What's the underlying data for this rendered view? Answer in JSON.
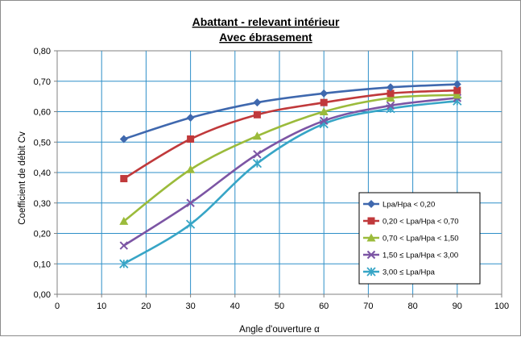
{
  "chart_data": {
    "type": "line",
    "title": "Abattant - relevant intérieur",
    "subtitle": "Avec ébrasement",
    "xlabel": "Angle d'ouverture α",
    "ylabel": "Coefficient de débit Cv",
    "xlim": [
      0,
      100
    ],
    "ylim": [
      0.0,
      0.8
    ],
    "x_ticks": [
      "0",
      "10",
      "20",
      "30",
      "40",
      "50",
      "60",
      "70",
      "80",
      "90",
      "100"
    ],
    "y_ticks": [
      "0,00",
      "0,10",
      "0,20",
      "0,30",
      "0,40",
      "0,50",
      "0,60",
      "0,70",
      "0,80"
    ],
    "grid": true,
    "legend_position": "bottom-right",
    "x": [
      15,
      30,
      45,
      60,
      75,
      90
    ],
    "series": [
      {
        "name": "Lpa/Hpa < 0,20",
        "color": "#3F68AE",
        "marker": "diamond",
        "values": [
          0.51,
          0.58,
          0.63,
          0.66,
          0.68,
          0.69
        ]
      },
      {
        "name": "0,20 < Lpa/Hpa < 0,70",
        "color": "#C0393B",
        "marker": "square",
        "values": [
          0.38,
          0.51,
          0.59,
          0.63,
          0.66,
          0.67
        ]
      },
      {
        "name": "0,70 < Lpa/Hpa < 1,50",
        "color": "#9BBB3B",
        "marker": "triangle",
        "values": [
          0.24,
          0.41,
          0.52,
          0.6,
          0.645,
          0.655
        ]
      },
      {
        "name": "1,50 ≤ Lpa/Hpa < 3,00",
        "color": "#7C55A4",
        "marker": "x",
        "values": [
          0.16,
          0.3,
          0.46,
          0.57,
          0.62,
          0.645
        ]
      },
      {
        "name": "3,00 ≤ Lpa/Hpa",
        "color": "#37A5C6",
        "marker": "star",
        "values": [
          0.1,
          0.23,
          0.43,
          0.56,
          0.61,
          0.635
        ]
      }
    ]
  }
}
